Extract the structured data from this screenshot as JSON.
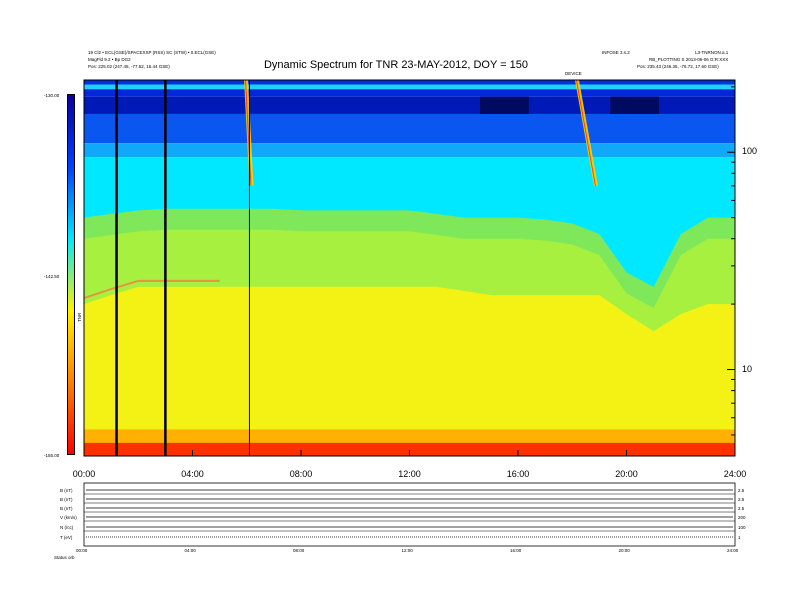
{
  "header": {
    "title": "Dynamic Spectrum for TNR 23-MAY-2012, DOY = 150",
    "left_line1": "19 Cl2 • ECL(GSE)/SPACEXSP (RSS) SC (STW) • 0.ECL(GSE)",
    "left_line2": "MagFld 9.2 • Bp DG2",
    "left_pos": "Pos:  225.02 (247.45, -77.52, 16.44 GSE)",
    "right_line1": "INFOSE 3.s.2",
    "right_line2": "L3-TNRNON.a.1",
    "right_line3": "RB_PLOTTING S 2013-06-06 G:R:XXX",
    "right_pos": "Pos:  235.43 (246.35, -76.72, 17.60 GSE)",
    "marker_label": "DEVICE"
  },
  "colorbar": {
    "label": "TNR",
    "tick_labels": [
      "-130.00",
      "-142.50",
      "-155.00"
    ],
    "colors": [
      "#0a00a0",
      "#0040ff",
      "#00e8ff",
      "#fff200",
      "#ff8000",
      "#ff0000"
    ]
  },
  "secondary": {
    "left_labels": [
      "B (nT)",
      "B (nT)",
      "B (nT)",
      "V (km/s)",
      "N (/cc)",
      "T (eV)"
    ],
    "right_labels": [
      "2.5",
      "2.5",
      "2.5",
      "200",
      "100",
      "1"
    ],
    "x_ticks": [
      "00:00",
      "04:00",
      "08:00",
      "12:00",
      "16:00",
      "20:00",
      "24:00"
    ],
    "footer_label": "Status  orb"
  },
  "chart_data": {
    "type": "heatmap",
    "title": "Dynamic Spectrum for TNR 23-MAY-2012, DOY = 150",
    "xlabel": "",
    "ylabel": "",
    "x_tick_labels": [
      "00:00",
      "04:00",
      "08:00",
      "12:00",
      "16:00",
      "20:00",
      "24:00"
    ],
    "x_ticks_hours": [
      0,
      4,
      8,
      12,
      16,
      20,
      24
    ],
    "xlim_hours": [
      0,
      24
    ],
    "y_scale": "log",
    "y_tick_labels": [
      "10",
      "100"
    ],
    "y_ticks": [
      10,
      100
    ],
    "ylim": [
      4,
      215
    ],
    "colorbar_range": [
      -155.0,
      -130.0
    ],
    "colorbar_ticks": [
      -130.0,
      -142.5,
      -155.0
    ],
    "vertical_lines_hours": [
      1.2,
      3.0,
      6.1
    ],
    "transition_cyan_to_green_khz": [
      50,
      52,
      54,
      55,
      55,
      55,
      55,
      55,
      54,
      54,
      54,
      54,
      54,
      52,
      50,
      50,
      50,
      49,
      47,
      42,
      28,
      24,
      42,
      50,
      50
    ],
    "transition_green_to_yellow_khz": [
      20,
      22,
      24,
      24,
      24,
      24,
      24,
      24,
      24,
      24,
      24,
      24,
      24,
      24,
      23,
      22,
      22,
      22,
      22,
      22,
      18,
      15,
      18,
      20,
      20
    ],
    "bursts": [
      {
        "start_hour": 5.9,
        "end_hour": 6.1,
        "type": "type III"
      },
      {
        "start_hour": 18.1,
        "end_hour": 18.8,
        "type": "type III"
      }
    ]
  }
}
